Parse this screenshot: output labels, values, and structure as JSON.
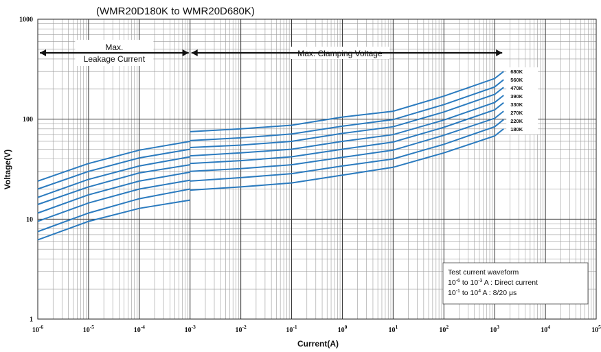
{
  "chart_data": {
    "type": "line",
    "title": "(WMR20D180K to WMR20D680K)",
    "xlabel": "Current(A)",
    "ylabel": "Voltage(V)",
    "x_scale": "log",
    "y_scale": "log",
    "xlim": [
      1e-06,
      100000.0
    ],
    "ylim": [
      1,
      1000
    ],
    "x_tick_labels": [
      {
        "value": 1e-06,
        "base": "10",
        "exp": "-6"
      },
      {
        "value": 1e-05,
        "base": "10",
        "exp": "-5"
      },
      {
        "value": 0.0001,
        "base": "10",
        "exp": "-4"
      },
      {
        "value": 0.001,
        "base": "10",
        "exp": "-3"
      },
      {
        "value": 0.01,
        "base": "10",
        "exp": "-2"
      },
      {
        "value": 0.1,
        "base": "10",
        "exp": "-1"
      },
      {
        "value": 1,
        "base": "10",
        "exp": "0"
      },
      {
        "value": 10,
        "base": "10",
        "exp": "1"
      },
      {
        "value": 100,
        "base": "10",
        "exp": "2"
      },
      {
        "value": 1000,
        "base": "10",
        "exp": "3"
      },
      {
        "value": 10000,
        "base": "10",
        "exp": "4"
      },
      {
        "value": 100000,
        "base": "10",
        "exp": "5"
      }
    ],
    "y_tick_labels": [
      {
        "value": 1,
        "text": "1"
      },
      {
        "value": 10,
        "text": "10"
      },
      {
        "value": 100,
        "text": "100"
      },
      {
        "value": 1000,
        "text": "1000"
      }
    ],
    "grid": true,
    "annotations": {
      "leakage": {
        "line1": "Max.",
        "line2": "Leakage Current",
        "x_range": [
          1e-06,
          0.001
        ]
      },
      "clamping": {
        "text": "Max. Clamping Voltage",
        "x_range": [
          0.001,
          1500
        ]
      }
    },
    "legend": {
      "title": "Test current waveform",
      "line1_a": "10",
      "line1_a_exp": "-6",
      "line1_b": " to 10",
      "line1_b_exp": "-3",
      "line1_c": " A : Direct current",
      "line2_a": "10",
      "line2_a_exp": "-1",
      "line2_b": " to 10",
      "line2_b_exp": "4",
      "line2_c": "  A : 8/20 μs",
      "placement": "bottom-right"
    },
    "line_color": "#2b7bbf",
    "series": [
      {
        "name": "680K",
        "leakage": {
          "x": [
            1e-06,
            1e-05,
            0.0001,
            0.001
          ],
          "y": [
            24,
            36,
            49,
            60
          ]
        },
        "clamping": {
          "x": [
            0.001,
            0.01,
            0.1,
            1,
            10,
            100,
            1000,
            1500
          ],
          "y": [
            75,
            80,
            87,
            105,
            120,
            170,
            255,
            300
          ]
        }
      },
      {
        "name": "560K",
        "leakage": {
          "x": [
            1e-06,
            1e-05,
            0.0001,
            0.001
          ],
          "y": [
            20,
            30,
            41,
            50
          ]
        },
        "clamping": {
          "x": [
            0.001,
            0.01,
            0.1,
            1,
            10,
            100,
            1000,
            1500
          ],
          "y": [
            61,
            65,
            71,
            85,
            99,
            140,
            210,
            248
          ]
        }
      },
      {
        "name": "470K",
        "leakage": {
          "x": [
            1e-06,
            1e-05,
            0.0001,
            0.001
          ],
          "y": [
            16.5,
            25,
            34,
            42
          ]
        },
        "clamping": {
          "x": [
            0.001,
            0.01,
            0.1,
            1,
            10,
            100,
            1000,
            1500
          ],
          "y": [
            52,
            55,
            60,
            72,
            84,
            118,
            177,
            208
          ]
        }
      },
      {
        "name": "390K",
        "leakage": {
          "x": [
            1e-06,
            1e-05,
            0.0001,
            0.001
          ],
          "y": [
            14,
            21,
            29,
            35
          ]
        },
        "clamping": {
          "x": [
            0.001,
            0.01,
            0.1,
            1,
            10,
            100,
            1000,
            1500
          ],
          "y": [
            43,
            46,
            50,
            60,
            70,
            98,
            147,
            173
          ]
        }
      },
      {
        "name": "330K",
        "leakage": {
          "x": [
            1e-06,
            1e-05,
            0.0001,
            0.001
          ],
          "y": [
            11.5,
            17.5,
            24,
            29.5
          ]
        },
        "clamping": {
          "x": [
            0.001,
            0.01,
            0.1,
            1,
            10,
            100,
            1000,
            1500
          ],
          "y": [
            36,
            38.5,
            42,
            50,
            59,
            83,
            124,
            146
          ]
        }
      },
      {
        "name": "270K",
        "leakage": {
          "x": [
            1e-06,
            1e-05,
            0.0001,
            0.001
          ],
          "y": [
            9.5,
            14.5,
            20,
            24.5
          ]
        },
        "clamping": {
          "x": [
            0.001,
            0.01,
            0.1,
            1,
            10,
            100,
            1000,
            1500
          ],
          "y": [
            30,
            32,
            35,
            41.5,
            49,
            69,
            102,
            120
          ]
        }
      },
      {
        "name": "220K",
        "leakage": {
          "x": [
            1e-06,
            1e-05,
            0.0001,
            0.001
          ],
          "y": [
            7.5,
            11.5,
            16,
            20
          ]
        },
        "clamping": {
          "x": [
            0.001,
            0.01,
            0.1,
            1,
            10,
            100,
            1000,
            1500
          ],
          "y": [
            24,
            26,
            28.5,
            34,
            40,
            56,
            84,
            99
          ]
        }
      },
      {
        "name": "180K",
        "leakage": {
          "x": [
            1e-06,
            1e-05,
            0.0001,
            0.001
          ],
          "y": [
            6.2,
            9.5,
            12.8,
            15.5
          ]
        },
        "clamping": {
          "x": [
            0.001,
            0.01,
            0.1,
            1,
            10,
            100,
            1000,
            1500
          ],
          "y": [
            19.5,
            21,
            23,
            27.5,
            33,
            46,
            68,
            80
          ]
        }
      }
    ]
  }
}
